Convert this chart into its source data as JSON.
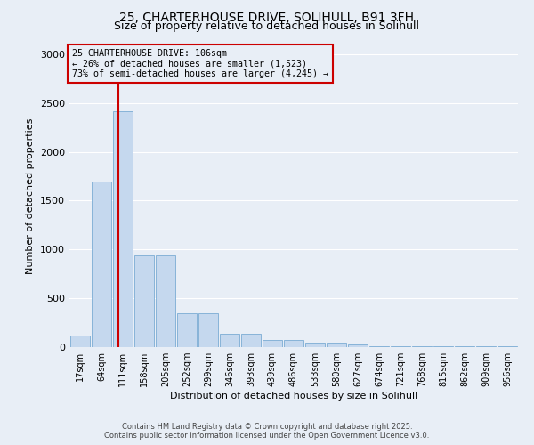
{
  "title_line1": "25, CHARTERHOUSE DRIVE, SOLIHULL, B91 3FH",
  "title_line2": "Size of property relative to detached houses in Solihull",
  "xlabel": "Distribution of detached houses by size in Solihull",
  "ylabel": "Number of detached properties",
  "categories": [
    "17sqm",
    "64sqm",
    "111sqm",
    "158sqm",
    "205sqm",
    "252sqm",
    "299sqm",
    "346sqm",
    "393sqm",
    "439sqm",
    "486sqm",
    "533sqm",
    "580sqm",
    "627sqm",
    "674sqm",
    "721sqm",
    "768sqm",
    "815sqm",
    "862sqm",
    "909sqm",
    "956sqm"
  ],
  "values": [
    120,
    1700,
    2420,
    940,
    940,
    350,
    350,
    140,
    140,
    75,
    75,
    50,
    50,
    30,
    5,
    5,
    5,
    5,
    5,
    5,
    5
  ],
  "bar_color": "#c5d8ee",
  "bar_edge_color": "#7aacd4",
  "bg_color": "#e8eef6",
  "grid_color": "#ffffff",
  "vline_x_index": 1.78,
  "vline_color": "#cc0000",
  "annotation_text": "25 CHARTERHOUSE DRIVE: 106sqm\n← 26% of detached houses are smaller (1,523)\n73% of semi-detached houses are larger (4,245) →",
  "annotation_box_edge": "#cc0000",
  "annotation_box_fill": "#e8eef6",
  "ylim": [
    0,
    3100
  ],
  "yticks": [
    0,
    500,
    1000,
    1500,
    2000,
    2500,
    3000
  ],
  "footer1": "Contains HM Land Registry data © Crown copyright and database right 2025.",
  "footer2": "Contains public sector information licensed under the Open Government Licence v3.0."
}
